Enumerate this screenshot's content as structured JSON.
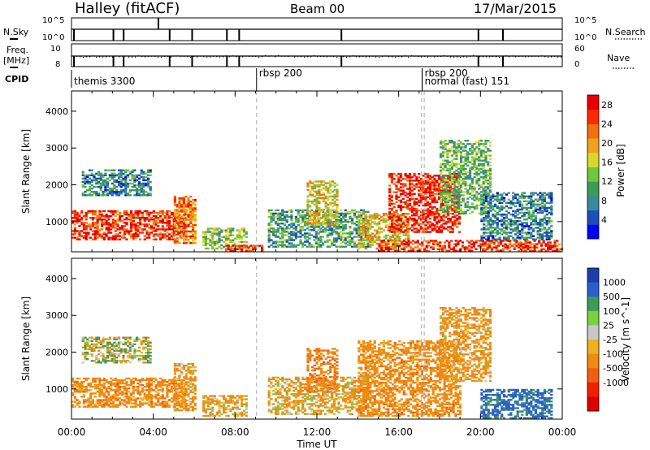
{
  "header": {
    "station": "Halley (fitACF)",
    "beam": "Beam 00",
    "date": "17/Mar/2015"
  },
  "strip1": {
    "left_label": "N.Sky",
    "left_ticks": [
      "10^5",
      "10^0"
    ],
    "right_label": "N.Search",
    "right_ticks": [
      "10^5",
      "10^0"
    ]
  },
  "strip2": {
    "left_label": "Freq.",
    "left_unit": "[MHz]",
    "left_ticks": [
      "10",
      "8"
    ],
    "right_label": "Nave",
    "right_ticks": [
      "60",
      "0"
    ]
  },
  "cpid": {
    "label": "CPID",
    "segments": [
      {
        "start_hour": 0.0,
        "text": "themis 3300",
        "row": 1
      },
      {
        "start_hour": 9.05,
        "text": "rbsp 200",
        "row": 0
      },
      {
        "start_hour": 17.15,
        "text": "rbsp 200",
        "row": 0
      },
      {
        "start_hour": 17.15,
        "text": "normal (fast) 151",
        "row": 1
      }
    ]
  },
  "colors": {
    "power_scale": [
      "#0000ff",
      "#1a4fb8",
      "#3a8a9a",
      "#3f9a57",
      "#6dc83b",
      "#d8d82a",
      "#f0a21c",
      "#f07010",
      "#ff2a00",
      "#e80000"
    ],
    "velocity_scale": [
      "#1c3fb0",
      "#2a5fd0",
      "#3f9a5a",
      "#7ad040",
      "#c8c8c8",
      "#f0b020",
      "#f08a10",
      "#f06010",
      "#f02000",
      "#e00000"
    ]
  },
  "chart_data": [
    {
      "type": "heatmap",
      "name": "power",
      "xlabel": "Time UT",
      "ylabel": "Slant Range [km]",
      "xlim": [
        0,
        24
      ],
      "ylim": [
        180,
        4550
      ],
      "x_ticks": [
        "00:00",
        "04:00",
        "08:00",
        "12:00",
        "16:00",
        "20:00",
        "00:00"
      ],
      "y_ticks": [
        1000,
        2000,
        3000,
        4000
      ],
      "colorbar": {
        "label": "Power [dB]",
        "ticks": [
          4,
          8,
          12,
          16,
          20,
          24,
          28
        ],
        "range": [
          0,
          30
        ]
      },
      "dashed_lines_hours": [
        9.05,
        17.12,
        17.25
      ],
      "echo_regions": [
        {
          "t0": 0.0,
          "t1": 5.6,
          "r0": 500,
          "r1": 1300,
          "value": 26
        },
        {
          "t0": 0.5,
          "t1": 3.8,
          "r0": 1700,
          "r1": 2400,
          "value": 8
        },
        {
          "t0": 5.0,
          "t1": 6.0,
          "r0": 400,
          "r1": 1700,
          "value": 22
        },
        {
          "t0": 6.4,
          "t1": 8.6,
          "r0": 250,
          "r1": 800,
          "value": 14
        },
        {
          "t0": 7.5,
          "t1": 9.3,
          "r0": 190,
          "r1": 350,
          "value": 26
        },
        {
          "t0": 9.6,
          "t1": 14.5,
          "r0": 300,
          "r1": 1300,
          "value": 10
        },
        {
          "t0": 11.5,
          "t1": 13.0,
          "r0": 900,
          "r1": 2100,
          "value": 18
        },
        {
          "t0": 14.0,
          "t1": 16.5,
          "r0": 250,
          "r1": 1200,
          "value": 18
        },
        {
          "t0": 15.5,
          "t1": 19.0,
          "r0": 700,
          "r1": 2300,
          "value": 27
        },
        {
          "t0": 15.0,
          "t1": 24.0,
          "r0": 190,
          "r1": 500,
          "value": 26
        },
        {
          "t0": 18.0,
          "t1": 20.5,
          "r0": 1200,
          "r1": 3200,
          "value": 12
        },
        {
          "t0": 20.0,
          "t1": 23.5,
          "r0": 500,
          "r1": 1800,
          "value": 8
        }
      ]
    },
    {
      "type": "heatmap",
      "name": "velocity",
      "xlabel": "Time UT",
      "ylabel": "Slant Range [km]",
      "xlim": [
        0,
        24
      ],
      "ylim": [
        180,
        4550
      ],
      "x_ticks": [
        "00:00",
        "04:00",
        "08:00",
        "12:00",
        "16:00",
        "20:00",
        "00:00"
      ],
      "y_ticks": [
        1000,
        2000,
        3000,
        4000
      ],
      "colorbar": {
        "label": "Velocity [m s^-1]",
        "ticks": [
          "1000",
          "500",
          "100",
          "25",
          "-25",
          "-100",
          "-500",
          "-1000"
        ]
      },
      "dashed_lines_hours": [
        9.05,
        17.12,
        17.25
      ],
      "echo_regions": [
        {
          "t0": 0.0,
          "t1": 5.6,
          "r0": 500,
          "r1": 1300,
          "class": -300
        },
        {
          "t0": 0.5,
          "t1": 3.8,
          "r0": 1700,
          "r1": 2400,
          "class": 0
        },
        {
          "t0": 5.0,
          "t1": 6.0,
          "r0": 400,
          "r1": 1700,
          "class": -200
        },
        {
          "t0": 6.4,
          "t1": 8.6,
          "r0": 250,
          "r1": 800,
          "class": -150
        },
        {
          "t0": 9.6,
          "t1": 14.5,
          "r0": 300,
          "r1": 1300,
          "class": -150
        },
        {
          "t0": 11.5,
          "t1": 13.0,
          "r0": 900,
          "r1": 2100,
          "class": -400
        },
        {
          "t0": 14.0,
          "t1": 19.0,
          "r0": 250,
          "r1": 2300,
          "class": -300
        },
        {
          "t0": 18.0,
          "t1": 20.5,
          "r0": 1200,
          "r1": 3200,
          "class": -200
        },
        {
          "t0": 20.0,
          "t1": 23.5,
          "r0": 190,
          "r1": 1000,
          "class": 600
        }
      ]
    }
  ]
}
